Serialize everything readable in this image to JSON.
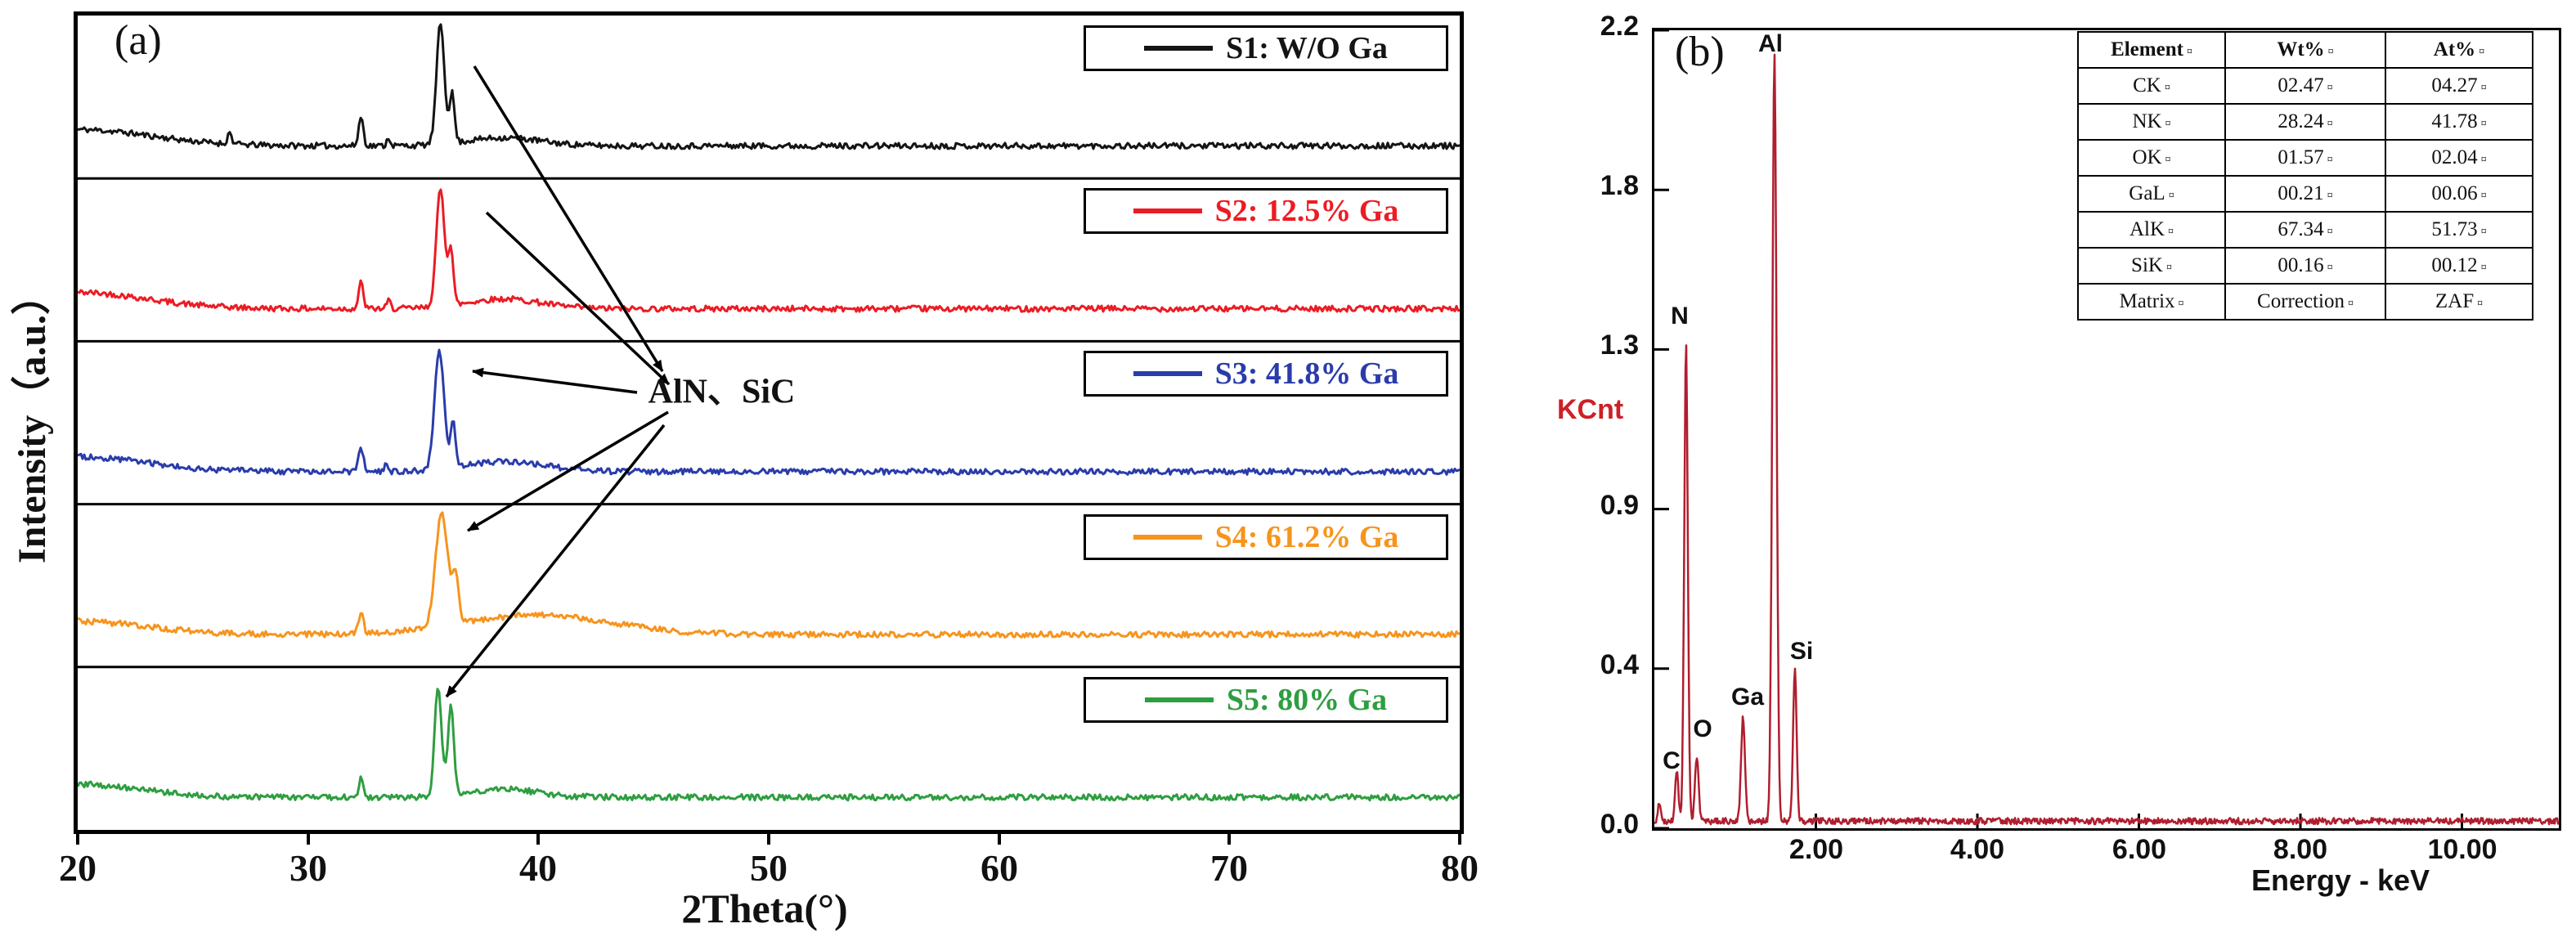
{
  "figure": {
    "panel_a_label": "(a)",
    "panel_b_label": "(b)",
    "background": "#ffffff"
  },
  "chart_data": [
    {
      "type": "line",
      "id": "xrd",
      "title": "",
      "xlabel": "2Theta(°)",
      "ylabel": "Intensity（a.u.）",
      "xlim": [
        20,
        80
      ],
      "xticks": [
        20,
        30,
        40,
        50,
        60,
        70,
        80
      ],
      "grid": false,
      "baseline_frac": 0.8,
      "noise_frac": 0.018,
      "annotation": {
        "text": "AlN、SiC",
        "fx": 0.466,
        "fy": 0.458
      },
      "arrows": [
        {
          "x1": 0.287,
          "y1": 0.062,
          "x2": 0.423,
          "y2": 0.437
        },
        {
          "x1": 0.296,
          "y1": 0.242,
          "x2": 0.428,
          "y2": 0.453
        },
        {
          "x1": 0.405,
          "y1": 0.463,
          "x2": 0.286,
          "y2": 0.437
        },
        {
          "x1": 0.427,
          "y1": 0.487,
          "x2": 0.282,
          "y2": 0.633
        },
        {
          "x1": 0.424,
          "y1": 0.503,
          "x2": 0.267,
          "y2": 0.836
        }
      ],
      "series": [
        {
          "name": "S1",
          "label": "S1: W/O Ga",
          "color": "#141414",
          "peaks": [
            {
              "x": 20,
              "h": 0.1,
              "w": 3.2
            },
            {
              "x": 26.6,
              "h": 0.07,
              "w": 0.09
            },
            {
              "x": 32.3,
              "h": 0.18,
              "w": 0.1
            },
            {
              "x": 33.5,
              "h": 0.05,
              "w": 0.08
            },
            {
              "x": 35.75,
              "h": 0.74,
              "w": 0.17
            },
            {
              "x": 36.25,
              "h": 0.3,
              "w": 0.11
            },
            {
              "x": 38.5,
              "h": 0.05,
              "w": 1.6
            }
          ]
        },
        {
          "name": "S2",
          "label": "S2: 12.5% Ga",
          "color": "#ec1c24",
          "peaks": [
            {
              "x": 20,
              "h": 0.1,
              "w": 3.0
            },
            {
              "x": 32.3,
              "h": 0.16,
              "w": 0.1
            },
            {
              "x": 33.5,
              "h": 0.05,
              "w": 0.08
            },
            {
              "x": 35.75,
              "h": 0.72,
              "w": 0.18
            },
            {
              "x": 36.2,
              "h": 0.34,
              "w": 0.11
            },
            {
              "x": 38.5,
              "h": 0.06,
              "w": 1.6
            }
          ]
        },
        {
          "name": "S3",
          "label": "S3: 41.8% Ga",
          "color": "#2a3cab",
          "peaks": [
            {
              "x": 20,
              "h": 0.09,
              "w": 3.0
            },
            {
              "x": 32.3,
              "h": 0.15,
              "w": 0.1
            },
            {
              "x": 33.4,
              "h": 0.05,
              "w": 0.08
            },
            {
              "x": 35.7,
              "h": 0.73,
              "w": 0.2
            },
            {
              "x": 36.3,
              "h": 0.28,
              "w": 0.11
            },
            {
              "x": 38.5,
              "h": 0.06,
              "w": 1.8
            }
          ]
        },
        {
          "name": "S4",
          "label": "S4: 61.2% Ga",
          "color": "#f7941d",
          "peaks": [
            {
              "x": 20,
              "h": 0.08,
              "w": 3.0
            },
            {
              "x": 32.3,
              "h": 0.14,
              "w": 0.1
            },
            {
              "x": 35.8,
              "h": 0.7,
              "w": 0.26
            },
            {
              "x": 36.4,
              "h": 0.3,
              "w": 0.14
            },
            {
              "x": 40,
              "h": 0.12,
              "w": 3.2
            }
          ]
        },
        {
          "name": "S5",
          "label": "S5: 80% Ga",
          "color": "#2e9e40",
          "peaks": [
            {
              "x": 20,
              "h": 0.08,
              "w": 2.8
            },
            {
              "x": 32.3,
              "h": 0.13,
              "w": 0.09
            },
            {
              "x": 35.65,
              "h": 0.68,
              "w": 0.15
            },
            {
              "x": 36.2,
              "h": 0.55,
              "w": 0.13
            },
            {
              "x": 38.5,
              "h": 0.05,
              "w": 1.5
            }
          ]
        }
      ]
    },
    {
      "type": "line",
      "id": "eds",
      "title": "",
      "xlabel": "Energy - keV",
      "ylabel": "KCnt",
      "ylabel_color": "#cc2127",
      "line_color": "#b01e2e",
      "xlim": [
        0,
        11.2
      ],
      "xticks": [
        "2.00",
        "4.00",
        "6.00",
        "8.00",
        "10.00"
      ],
      "yticks": [
        "0.0",
        "0.4",
        "0.9",
        "1.3",
        "1.8",
        "2.2"
      ],
      "grid": false,
      "baseline": 0.018,
      "noise": 0.008,
      "peaks": [
        {
          "element": "",
          "e": 0.06,
          "h": 0.05,
          "w": 0.015
        },
        {
          "element": "C",
          "e": 0.277,
          "h": 0.13,
          "w": 0.02
        },
        {
          "element": "N",
          "e": 0.392,
          "h": 1.3,
          "w": 0.022
        },
        {
          "element": "O",
          "e": 0.525,
          "h": 0.16,
          "w": 0.022
        },
        {
          "element": "Ga",
          "e": 1.098,
          "h": 0.26,
          "w": 0.024
        },
        {
          "element": "Al",
          "e": 1.487,
          "h": 2.13,
          "w": 0.026
        },
        {
          "element": "Si",
          "e": 1.74,
          "h": 0.38,
          "w": 0.022
        }
      ],
      "peak_labels": [
        {
          "text": "C",
          "e": 0.21,
          "v": 0.15
        },
        {
          "text": "O",
          "e": 0.6,
          "v": 0.23
        },
        {
          "text": "N",
          "e": 0.31,
          "v": 1.38
        },
        {
          "text": "Ga",
          "e": 1.15,
          "v": 0.31
        },
        {
          "text": "Al",
          "e": 1.44,
          "v": 2.17
        },
        {
          "text": "Si",
          "e": 1.82,
          "v": 0.43
        }
      ]
    }
  ],
  "eds_table": {
    "headers": [
      "Element",
      "Wt%",
      "At%"
    ],
    "rows": [
      [
        "CK",
        "02.47",
        "04.27"
      ],
      [
        "NK",
        "28.24",
        "41.78"
      ],
      [
        "OK",
        "01.57",
        "02.04"
      ],
      [
        "GaL",
        "00.21",
        "00.06"
      ],
      [
        "AlK",
        "67.34",
        "51.73"
      ],
      [
        "SiK",
        "00.16",
        "00.12"
      ],
      [
        "Matrix",
        "Correction",
        "ZAF"
      ]
    ],
    "cell_mark": "¤"
  }
}
